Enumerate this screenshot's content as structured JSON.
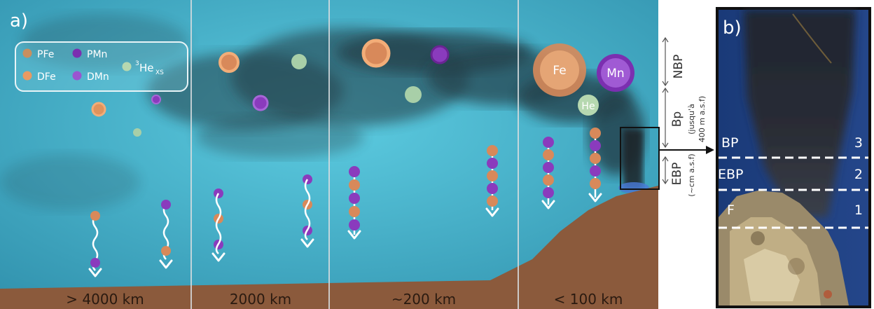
{
  "panel_a": {
    "label": "a)",
    "legend": {
      "pfe": "PFe",
      "dfe": "DFe",
      "pmn": "PMn",
      "dmn": "DMn",
      "he_sup": "3",
      "he_main": "He",
      "he_sub": "XS"
    },
    "distances": [
      "> 4000 km",
      "2000 km",
      "~200 km",
      "< 100 km"
    ],
    "big_circles": {
      "fe": "Fe",
      "mn": "Mn",
      "he": "He"
    },
    "vertical_labels": {
      "nbp": "NBP",
      "bp_main": "Bp",
      "bp_sub1": "(jusqu'à",
      "bp_sub2": "400 m a.s.f)",
      "ebp_main": "EBP",
      "ebp_sub": "(~cm a.s.f)"
    },
    "colors": {
      "water": "#3fa9c4",
      "seafloor": "#8b5a3c",
      "fe": "#e0935c",
      "mn": "#8a3bbd",
      "he": "#a8cfa8",
      "smoke": "#1e2a30"
    }
  },
  "panel_b": {
    "label": "b)",
    "zones": [
      {
        "name": "BP",
        "number": "3"
      },
      {
        "name": "EBP",
        "number": "2"
      },
      {
        "name": "F",
        "number": "1"
      }
    ]
  }
}
